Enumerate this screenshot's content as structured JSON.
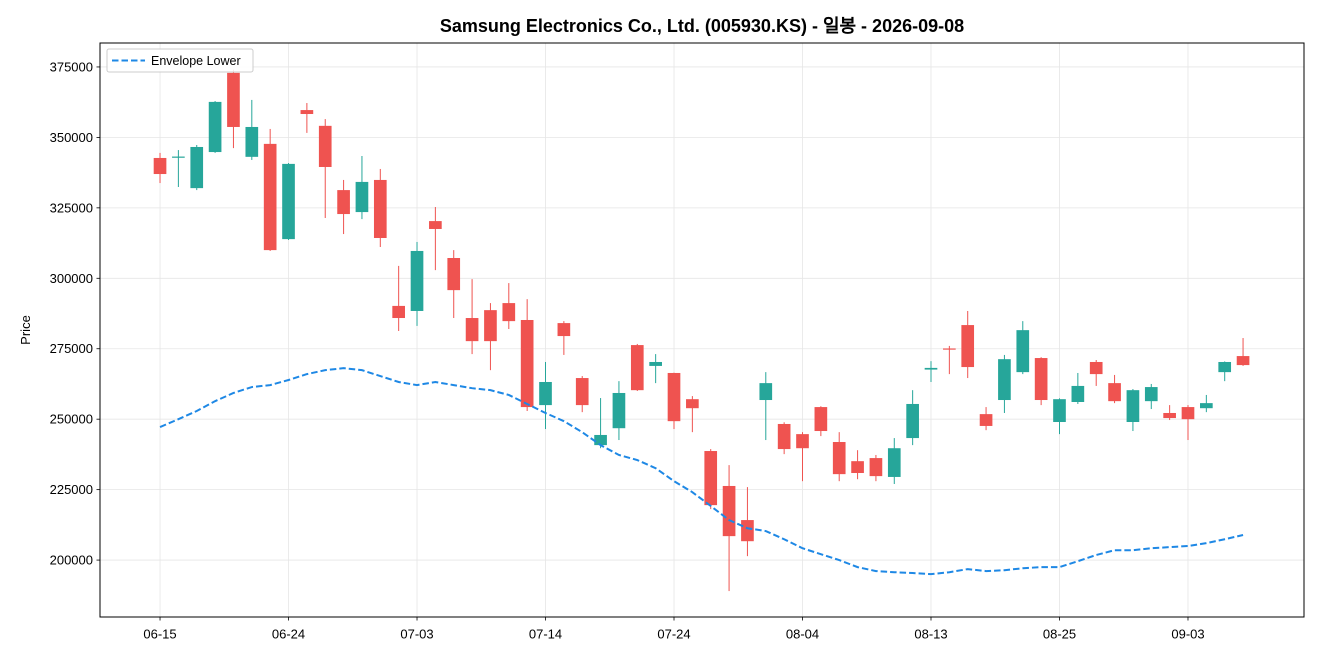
{
  "chart_data": {
    "type": "candlestick",
    "title": "Samsung Electronics Co., Ltd. (005930.KS) - 일봉 - 2026-09-08",
    "ylabel": "Price",
    "ylim": [
      179800,
      383500
    ],
    "yticks": [
      200000,
      225000,
      250000,
      275000,
      300000,
      325000,
      350000,
      375000
    ],
    "xticks": [
      "06-15",
      "06-24",
      "07-03",
      "07-14",
      "07-24",
      "08-04",
      "08-13",
      "08-25",
      "09-03"
    ],
    "x": [
      "06-15",
      "06-16",
      "06-17",
      "06-18",
      "06-19",
      "06-22",
      "06-23",
      "06-24",
      "06-25",
      "06-26",
      "06-29",
      "06-30",
      "07-01",
      "07-02",
      "07-03",
      "07-06",
      "07-07",
      "07-08",
      "07-09",
      "07-10",
      "07-13",
      "07-14",
      "07-15",
      "07-16",
      "07-20",
      "07-21",
      "07-22",
      "07-23",
      "07-24",
      "07-27",
      "07-28",
      "07-29",
      "07-30",
      "07-31",
      "08-03",
      "08-04",
      "08-05",
      "08-06",
      "08-07",
      "08-10",
      "08-11",
      "08-12",
      "08-13",
      "08-14",
      "08-18",
      "08-19",
      "08-20",
      "08-21",
      "08-24",
      "08-25",
      "08-26",
      "08-27",
      "08-28",
      "08-31",
      "09-01",
      "09-02",
      "09-03",
      "09-04",
      "09-07",
      "09-08"
    ],
    "open": [
      342700,
      342900,
      332000,
      344800,
      372900,
      343100,
      347700,
      313900,
      359700,
      354100,
      331300,
      323500,
      334900,
      290200,
      288400,
      320300,
      307200,
      285900,
      288700,
      291200,
      285200,
      255000,
      284100,
      264600,
      240800,
      246800,
      276300,
      268900,
      266400,
      257100,
      238700,
      226300,
      214200,
      256800,
      248300,
      244700,
      254300,
      241900,
      235100,
      236200,
      229500,
      243300,
      267600,
      275100,
      283400,
      251800,
      256800,
      266700,
      271700,
      249000,
      256100,
      270300,
      262800,
      249000,
      256400,
      252200,
      254300,
      253900,
      266700,
      272400
    ],
    "high": [
      344500,
      345500,
      347300,
      362900,
      374000,
      363300,
      353000,
      340900,
      362200,
      356500,
      334900,
      343400,
      338800,
      304400,
      312900,
      325300,
      310000,
      299700,
      291200,
      298300,
      292600,
      270300,
      284800,
      265300,
      257500,
      263500,
      276700,
      273100,
      266500,
      258200,
      239400,
      233700,
      225900,
      266700,
      248900,
      245400,
      254600,
      245400,
      239000,
      237300,
      243300,
      260300,
      270600,
      276000,
      288400,
      254300,
      272800,
      284800,
      272000,
      257400,
      266400,
      271000,
      265700,
      260700,
      262500,
      255000,
      255000,
      258600,
      270500,
      278800
    ],
    "low": [
      333800,
      332400,
      331300,
      344500,
      346200,
      342000,
      309700,
      313600,
      351600,
      321400,
      315700,
      321000,
      311100,
      281300,
      283100,
      302900,
      285900,
      273100,
      267400,
      282000,
      252900,
      246500,
      272800,
      252500,
      239700,
      242600,
      260000,
      262800,
      246500,
      245400,
      218100,
      189000,
      201400,
      242600,
      237600,
      228000,
      244000,
      228000,
      228700,
      228000,
      227000,
      240800,
      263200,
      266000,
      264600,
      246100,
      252200,
      266000,
      255000,
      244700,
      255400,
      261800,
      255700,
      245800,
      253600,
      249700,
      242600,
      252500,
      263500,
      268900
    ],
    "close": [
      337000,
      343200,
      346600,
      362600,
      353700,
      353700,
      310000,
      340600,
      358300,
      339500,
      322800,
      334200,
      314300,
      285900,
      309700,
      317500,
      295800,
      277700,
      277700,
      284800,
      254300,
      263200,
      279500,
      255000,
      244400,
      259300,
      260300,
      270300,
      249300,
      253900,
      219500,
      208500,
      206700,
      262800,
      239400,
      239700,
      245800,
      230500,
      230900,
      229800,
      239700,
      255400,
      268200,
      274700,
      268500,
      247600,
      271300,
      281600,
      256800,
      257100,
      261800,
      266000,
      256400,
      260300,
      261400,
      250400,
      250000,
      255700,
      270300,
      269200
    ],
    "overlays": [
      {
        "name": "Envelope Lower",
        "style": "dashed",
        "color": "#1e88e5",
        "values": [
          247200,
          250000,
          252900,
          256400,
          259300,
          261400,
          262100,
          263900,
          266000,
          267400,
          268100,
          267400,
          265300,
          263200,
          262100,
          263200,
          262100,
          261000,
          260300,
          258600,
          255400,
          252200,
          249300,
          245400,
          240800,
          237300,
          235500,
          232600,
          228000,
          224100,
          219200,
          214200,
          211300,
          210300,
          207400,
          204200,
          202100,
          200000,
          197500,
          196100,
          195700,
          195400,
          195000,
          195700,
          196800,
          196100,
          196400,
          197100,
          197500,
          197500,
          199600,
          201800,
          203500,
          203500,
          204200,
          204600,
          205000,
          206000,
          207400,
          208900
        ]
      }
    ],
    "colors": {
      "up": "#26a69a",
      "down": "#ef5350"
    },
    "legend": "top-left",
    "grid": true
  }
}
